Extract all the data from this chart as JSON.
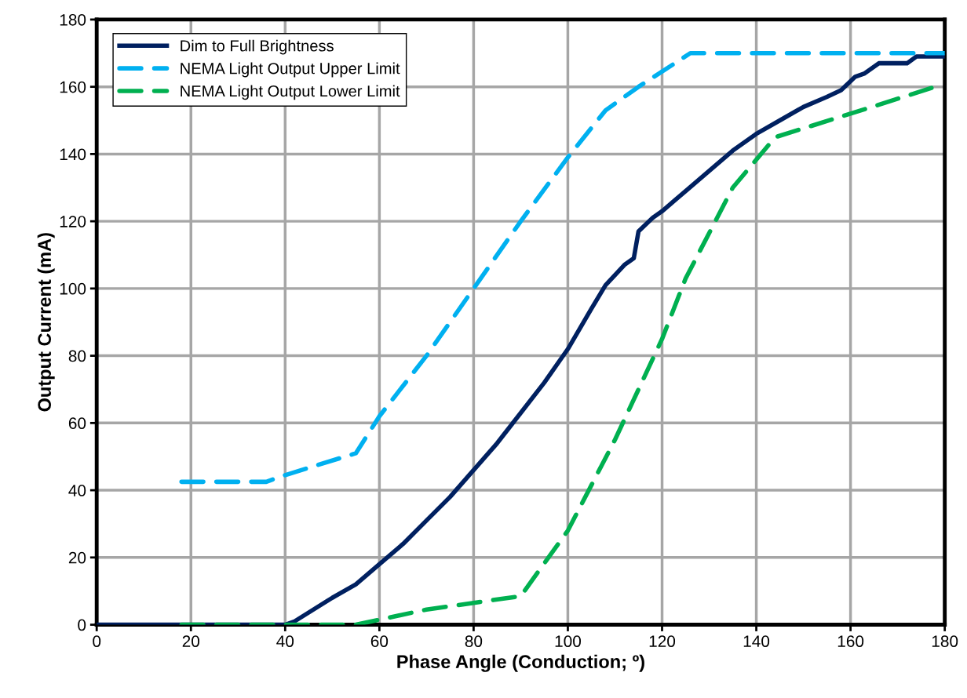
{
  "chart_data": {
    "type": "line",
    "xlabel": "Phase Angle (Conduction; º)",
    "ylabel": "Output Current (mA)",
    "xlim": [
      0,
      180
    ],
    "xticks": [
      0,
      20,
      40,
      60,
      80,
      100,
      120,
      140,
      160,
      180
    ],
    "ylim": [
      0,
      180
    ],
    "yticks": [
      0,
      20,
      40,
      60,
      80,
      100,
      120,
      140,
      160,
      180
    ],
    "grid": true,
    "legend": "top left",
    "marker": "none",
    "series": [
      {
        "name": "Dim to Full Brightness",
        "color": "#002060",
        "line_style": "solid",
        "x": [
          0,
          40,
          42,
          50,
          55,
          60,
          65,
          70,
          75,
          80,
          85,
          90,
          95,
          100,
          105,
          108,
          112,
          114,
          115,
          118,
          120,
          125,
          130,
          135,
          140,
          145,
          150,
          155,
          158,
          161,
          163,
          166,
          172,
          174,
          180
        ],
        "values": [
          0,
          0,
          1,
          8,
          12,
          18,
          24,
          31,
          38,
          46,
          54,
          63,
          72,
          82,
          94,
          101,
          107,
          109,
          117,
          121,
          123,
          129,
          135,
          141,
          146,
          150,
          154,
          157,
          159,
          163,
          164,
          167,
          167,
          169,
          169
        ]
      },
      {
        "name": "NEMA Light Output Upper Limit",
        "color": "#00b0f0",
        "line_style": "dashed",
        "x": [
          18,
          36,
          40,
          55,
          60,
          70,
          80,
          90,
          100,
          108,
          115,
          126,
          180
        ],
        "values": [
          42.5,
          42.5,
          44.5,
          51,
          62,
          80,
          100,
          120,
          139,
          153,
          160,
          170,
          170
        ]
      },
      {
        "name": "NEMA Light Output Lower Limit",
        "color": "#00b050",
        "line_style": "dashed",
        "x": [
          18,
          55,
          60,
          70,
          80,
          90,
          100,
          110,
          120,
          125,
          135,
          144,
          160,
          178
        ],
        "values": [
          0,
          0,
          1.5,
          4.5,
          6.5,
          8.5,
          28,
          55,
          85,
          103,
          130,
          145,
          152,
          160
        ]
      }
    ]
  }
}
